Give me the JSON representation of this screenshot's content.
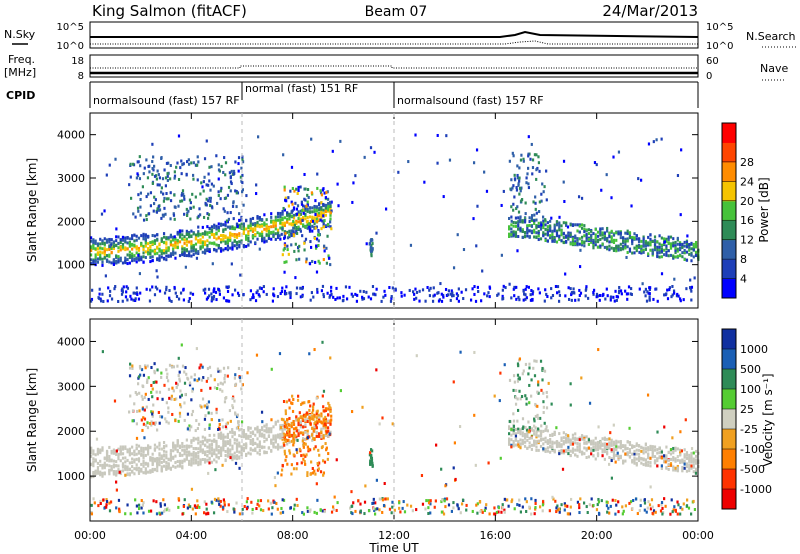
{
  "header": {
    "station": "King Salmon (fitACF)",
    "beam": "Beam 07",
    "date": "24/Mar/2013"
  },
  "summary_panels": {
    "nsky": {
      "label": "N.Sky",
      "ticks": [
        "10^5",
        "10^0"
      ]
    },
    "nsearch": {
      "label": "N.Search",
      "ticks": [
        "10^5",
        "10^0"
      ]
    },
    "freq": {
      "label_line1": "Freq.",
      "label_line2": "[MHz]",
      "ticks": [
        "18",
        "8"
      ]
    },
    "nave": {
      "label": "Nave",
      "ticks": [
        "60",
        "0"
      ]
    },
    "cpid": {
      "label": "CPID",
      "segments": [
        {
          "start_h": 0,
          "end_h": 6,
          "text": "normalsound (fast) 157 RF"
        },
        {
          "start_h": 6,
          "end_h": 12,
          "text": "normal (fast) 151 RF"
        },
        {
          "start_h": 12,
          "end_h": 24,
          "text": "normalsound (fast) 157 RF"
        }
      ]
    }
  },
  "x_axis": {
    "title": "Time UT",
    "tick_labels": [
      "00:00",
      "04:00",
      "08:00",
      "12:00",
      "16:00",
      "20:00",
      "00:00"
    ]
  },
  "colors": {
    "power": [
      "#0000ff",
      "#1e3fb8",
      "#2f5fa8",
      "#2e8b57",
      "#46c23a",
      "#f5c400",
      "#ff8c00",
      "#ff4500",
      "#ff0000"
    ],
    "velocity": [
      "#1030a0",
      "#1a5fb5",
      "#2e8b57",
      "#55cc33",
      "#cfcfc0",
      "#f0a020",
      "#ff7f00",
      "#ff3300",
      "#ee0000"
    ],
    "ground": "#c8c8bd"
  },
  "chart_data": [
    {
      "type": "heatmap",
      "panel": "power",
      "xlim": [
        0,
        24
      ],
      "ylim": [
        0,
        4500
      ],
      "ylabel": "Slant Range [km]",
      "y_ticks": [
        "1000",
        "2000",
        "3000",
        "4000"
      ],
      "y_tick_values": [
        1000,
        2000,
        3000,
        4000
      ],
      "colorbar": {
        "label": "Power [dB]",
        "range": [
          0,
          32
        ],
        "tick_labels": [
          "4",
          "8",
          "12",
          "16",
          "20",
          "24",
          "28"
        ]
      },
      "features": [
        {
          "time_h": [
            0,
            9.5
          ],
          "range_km": [
            1000,
            2300
          ],
          "trend": "arc rising from 1300 to 2200 km",
          "peak_dB": 24
        },
        {
          "time_h": [
            1.5,
            6
          ],
          "range_km": [
            2000,
            3500
          ],
          "trend": "sporadic high-range echoes",
          "peak_dB": 12
        },
        {
          "time_h": [
            11.0,
            11.1
          ],
          "range_km": [
            1200,
            1600
          ],
          "trend": "isolated patch",
          "peak_dB": 12
        },
        {
          "time_h": [
            16.5,
            24
          ],
          "range_km": [
            1100,
            2000
          ],
          "trend": "descending band",
          "peak_dB": 16
        },
        {
          "time_h": [
            0,
            24
          ],
          "range_km": [
            150,
            400
          ],
          "trend": "near-range ionospheric scatter",
          "peak_dB": 8
        }
      ]
    },
    {
      "type": "heatmap",
      "panel": "velocity",
      "xlim": [
        0,
        24
      ],
      "ylim": [
        0,
        4500
      ],
      "ylabel": "Slant Range [km]",
      "y_ticks": [
        "1000",
        "2000",
        "3000",
        "4000"
      ],
      "y_tick_values": [
        1000,
        2000,
        3000,
        4000
      ],
      "colorbar": {
        "label": "Velocity [m s⁻¹]",
        "tick_labels": [
          "1000",
          "500",
          "100",
          "25",
          "-25",
          "-100",
          "-500",
          "-1000"
        ],
        "tick_values": [
          1000,
          500,
          100,
          25,
          -25,
          -100,
          -500,
          -1000
        ]
      },
      "features": [
        {
          "time_h": [
            0,
            9.5
          ],
          "range_km": [
            1000,
            2300
          ],
          "trend": "ground scatter arc",
          "velocity_ms": 0
        },
        {
          "time_h": [
            7.5,
            9.5
          ],
          "range_km": [
            1000,
            3000
          ],
          "trend": "patches",
          "velocity_ms": -300
        },
        {
          "time_h": [
            16.5,
            24
          ],
          "range_km": [
            1100,
            2000
          ],
          "trend": "ground scatter band",
          "velocity_ms": 0
        }
      ]
    }
  ]
}
